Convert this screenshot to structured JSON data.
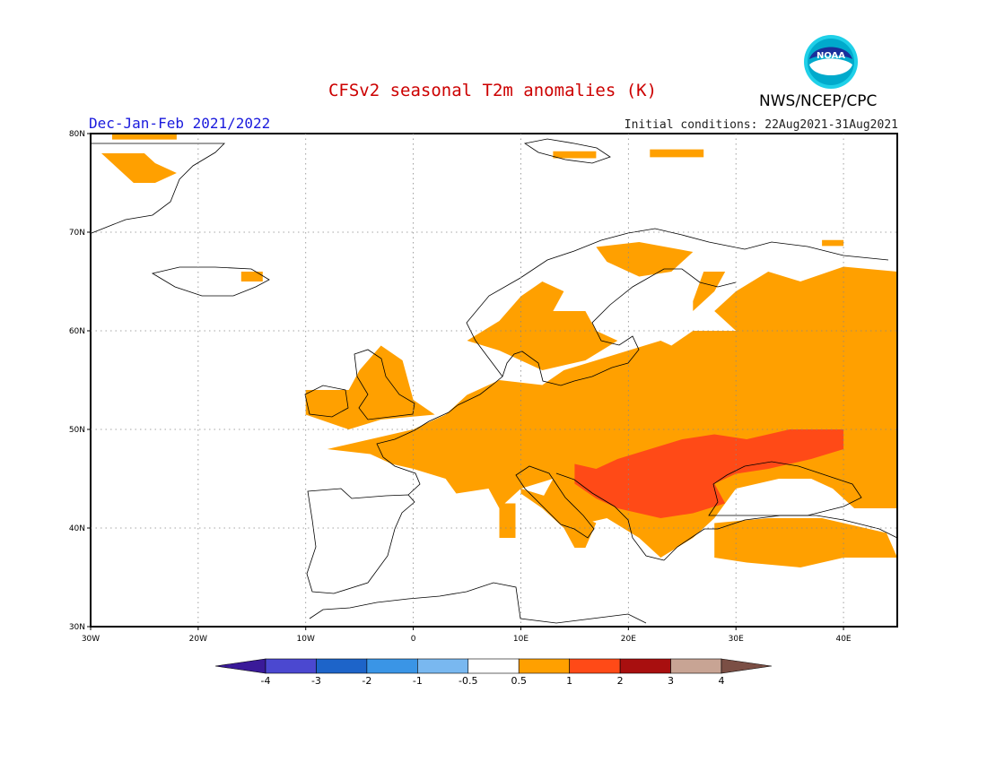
{
  "title": "CFSv2 seasonal T2m anomalies (K)",
  "season": "Dec-Jan-Feb 2021/2022",
  "initial_conditions": "Initial conditions: 22Aug2021-31Aug2021",
  "agency": "NWS/NCEP/CPC",
  "logo_text": "NOAA",
  "map": {
    "lon_range": [
      -30,
      45
    ],
    "lat_range": [
      30,
      80
    ],
    "lon_ticks": [
      {
        "value": -30,
        "label": "30W"
      },
      {
        "value": -20,
        "label": "20W"
      },
      {
        "value": -10,
        "label": "10W"
      },
      {
        "value": 0,
        "label": "0"
      },
      {
        "value": 10,
        "label": "10E"
      },
      {
        "value": 20,
        "label": "20E"
      },
      {
        "value": 30,
        "label": "30E"
      },
      {
        "value": 40,
        "label": "40E"
      }
    ],
    "lat_ticks": [
      {
        "value": 30,
        "label": "30N"
      },
      {
        "value": 40,
        "label": "40N"
      },
      {
        "value": 50,
        "label": "50N"
      },
      {
        "value": 60,
        "label": "60N"
      },
      {
        "value": 70,
        "label": "70N"
      },
      {
        "value": 80,
        "label": "80N"
      }
    ],
    "grid": "dotted",
    "anomaly_regions": [
      {
        "name": "Greenland",
        "level": "0.5-1",
        "outline": [
          [
            -29,
            78
          ],
          [
            -25,
            78
          ],
          [
            -24,
            77
          ],
          [
            -22,
            76
          ],
          [
            -24,
            75
          ],
          [
            -26,
            75
          ],
          [
            -28,
            77
          ],
          [
            -29,
            78
          ]
        ]
      },
      {
        "name": "Greenland north edge",
        "level": "0.5-1",
        "outline": [
          [
            -28,
            80
          ],
          [
            -22,
            80
          ],
          [
            -22,
            79.4
          ],
          [
            -28,
            79.4
          ]
        ]
      },
      {
        "name": "Iceland east",
        "level": "0.5-1",
        "outline": [
          [
            -16,
            66
          ],
          [
            -14,
            66
          ],
          [
            -14,
            65
          ],
          [
            -16,
            65
          ]
        ]
      },
      {
        "name": "Svalbard",
        "level": "0.5-1",
        "outline": [
          [
            13,
            78.2
          ],
          [
            17,
            78.2
          ],
          [
            17,
            77.5
          ],
          [
            13,
            77.5
          ]
        ]
      },
      {
        "name": "Svalbard east",
        "level": "0.5-1",
        "outline": [
          [
            22,
            78.4
          ],
          [
            27,
            78.4
          ],
          [
            27,
            77.6
          ],
          [
            22,
            77.6
          ]
        ]
      },
      {
        "name": "Kola",
        "level": "0.5-1",
        "outline": [
          [
            38,
            69.2
          ],
          [
            40,
            69.2
          ],
          [
            40,
            68.6
          ],
          [
            38,
            68.6
          ]
        ]
      },
      {
        "name": "Ireland and UK",
        "level": "0.5-1",
        "outline": [
          [
            -10,
            54
          ],
          [
            -6,
            54
          ],
          [
            -5,
            56
          ],
          [
            -3,
            58.5
          ],
          [
            -1,
            57
          ],
          [
            0,
            53
          ],
          [
            2,
            51.5
          ],
          [
            -3,
            51
          ],
          [
            -6,
            50
          ],
          [
            -10,
            51.5
          ]
        ]
      },
      {
        "name": "Norway and Sweden",
        "level": "0.5-1",
        "outline": [
          [
            5,
            59
          ],
          [
            8,
            61
          ],
          [
            10,
            63.5
          ],
          [
            12,
            65
          ],
          [
            14,
            64
          ],
          [
            13,
            62
          ],
          [
            16,
            62
          ],
          [
            17,
            60
          ],
          [
            19,
            59
          ],
          [
            16,
            57
          ],
          [
            12,
            56
          ],
          [
            8,
            58
          ],
          [
            5,
            59
          ]
        ]
      },
      {
        "name": "Northern Scandinavia",
        "level": "0.5-1",
        "outline": [
          [
            17,
            68.5
          ],
          [
            21,
            69
          ],
          [
            26,
            68
          ],
          [
            24,
            66
          ],
          [
            21,
            65.5
          ],
          [
            18,
            67
          ]
        ]
      },
      {
        "name": "Continental Europe",
        "level": "0.5-1",
        "outline": [
          [
            -8,
            48
          ],
          [
            -4,
            49
          ],
          [
            0,
            50
          ],
          [
            3,
            51.5
          ],
          [
            5,
            53.5
          ],
          [
            8,
            55
          ],
          [
            12,
            54.5
          ],
          [
            14,
            56
          ],
          [
            17,
            57
          ],
          [
            20,
            58
          ],
          [
            23,
            59
          ],
          [
            24,
            58.5
          ],
          [
            26,
            60
          ],
          [
            30,
            60
          ],
          [
            28,
            62
          ],
          [
            30,
            64
          ],
          [
            33,
            66
          ],
          [
            36,
            65
          ],
          [
            40,
            66.5
          ],
          [
            45,
            66
          ],
          [
            45,
            42
          ],
          [
            41,
            42
          ],
          [
            39,
            44
          ],
          [
            37,
            45
          ],
          [
            34,
            45
          ],
          [
            30,
            44
          ],
          [
            28,
            41
          ],
          [
            26,
            39
          ],
          [
            23,
            37
          ],
          [
            21,
            39
          ],
          [
            18,
            41
          ],
          [
            16,
            40.5
          ],
          [
            13,
            41.5
          ],
          [
            12,
            43
          ],
          [
            13,
            45
          ],
          [
            10,
            44
          ],
          [
            8,
            42
          ],
          [
            7,
            44
          ],
          [
            4,
            43.5
          ],
          [
            3,
            45
          ],
          [
            0,
            46
          ],
          [
            -2,
            46.5
          ],
          [
            -4,
            47.5
          ],
          [
            -8,
            48
          ]
        ]
      },
      {
        "name": "Finland / Karelia",
        "level": "0.5-1",
        "outline": [
          [
            26,
            62
          ],
          [
            28,
            64
          ],
          [
            29,
            66
          ],
          [
            27,
            66
          ],
          [
            26,
            63
          ]
        ]
      },
      {
        "name": "Italy",
        "level": "0.5-1",
        "outline": [
          [
            10,
            44
          ],
          [
            13,
            43
          ],
          [
            16,
            41
          ],
          [
            17,
            40.5
          ],
          [
            16,
            38
          ],
          [
            15,
            38
          ],
          [
            14,
            40
          ],
          [
            12,
            42
          ],
          [
            10,
            43.5
          ]
        ]
      },
      {
        "name": "Sardinia / Corsica",
        "level": "0.5-1",
        "outline": [
          [
            8,
            42.5
          ],
          [
            9.5,
            42.5
          ],
          [
            9.5,
            39
          ],
          [
            8,
            39
          ]
        ]
      },
      {
        "name": "Anatolia",
        "level": "0.5-1",
        "outline": [
          [
            28,
            40.5
          ],
          [
            33,
            41
          ],
          [
            38,
            41
          ],
          [
            44,
            39.5
          ],
          [
            45,
            37
          ],
          [
            40,
            37
          ],
          [
            36,
            36
          ],
          [
            31,
            36.5
          ],
          [
            28,
            37
          ]
        ]
      },
      {
        "name": "Balkans and Ukraine",
        "level": "1-2",
        "outline": [
          [
            15,
            46.5
          ],
          [
            17,
            46
          ],
          [
            19,
            47
          ],
          [
            22,
            48
          ],
          [
            25,
            49
          ],
          [
            28,
            49.5
          ],
          [
            31,
            49
          ],
          [
            35,
            50
          ],
          [
            40,
            50
          ],
          [
            40,
            48
          ],
          [
            37,
            47
          ],
          [
            33,
            46
          ],
          [
            30,
            45.5
          ],
          [
            28,
            44.5
          ],
          [
            29,
            42.5
          ],
          [
            26,
            41.5
          ],
          [
            23,
            41
          ],
          [
            21,
            41.5
          ],
          [
            19,
            42
          ],
          [
            17,
            43
          ],
          [
            15,
            44.5
          ]
        ]
      }
    ]
  },
  "colorbar": {
    "tick_labels": [
      "-4",
      "-3",
      "-2",
      "-1",
      "-0.5",
      "0.5",
      "1",
      "2",
      "3",
      "4"
    ],
    "colors": [
      "#3a1a99",
      "#4b48d0",
      "#1d64c9",
      "#3a95e6",
      "#79b8f0",
      "#ffffff",
      "#ffa000",
      "#ff4a17",
      "#a80f0f",
      "#c8a494",
      "#7b4f45"
    ]
  },
  "level_colors": {
    "0.5-1": "#ffa000",
    "1-2": "#ff4a17"
  }
}
